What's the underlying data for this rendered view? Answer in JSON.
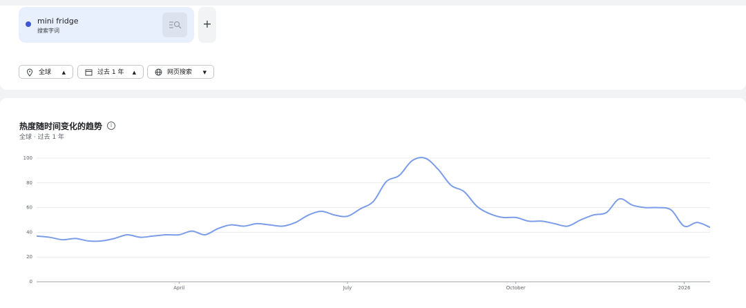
{
  "search_term": {
    "subtitle": "搜索字词"
  },
  "filters": [
    "全球",
    "过去 1 年",
    "网页搜索"
  ],
  "chart_data": {
    "type": "line",
    "title": "热度随时间变化的趋势",
    "subtitle": "全球 · 过去 1 年",
    "categories": [
      null,
      null,
      null,
      null,
      null,
      null,
      null,
      null,
      null,
      null,
      null,
      "April",
      null,
      null,
      null,
      null,
      null,
      null,
      null,
      null,
      null,
      null,
      null,
      null,
      "July",
      null,
      null,
      null,
      null,
      null,
      null,
      null,
      null,
      null,
      null,
      null,
      null,
      "October",
      null,
      null,
      null,
      null,
      null,
      null,
      null,
      null,
      null,
      null,
      null,
      null,
      "2026",
      null,
      null
    ],
    "series": [
      {
        "name": "mini fridge",
        "color": "#7b9ce8",
        "values": [
          37,
          36,
          34,
          35,
          33,
          33,
          35,
          38,
          36,
          37,
          38,
          38,
          41,
          38,
          43,
          46,
          45,
          47,
          46,
          45,
          48,
          54,
          57,
          54,
          53,
          59,
          65,
          81,
          86,
          98,
          100,
          91,
          78,
          73,
          61,
          55,
          52,
          52,
          49,
          49,
          47,
          45,
          50,
          54,
          56,
          67,
          62,
          60,
          60,
          58,
          45,
          48,
          44
        ]
      }
    ],
    "ylim": [
      0,
      100
    ],
    "yticks": [
      0,
      20,
      40,
      60,
      80,
      100
    ],
    "grid": true
  }
}
